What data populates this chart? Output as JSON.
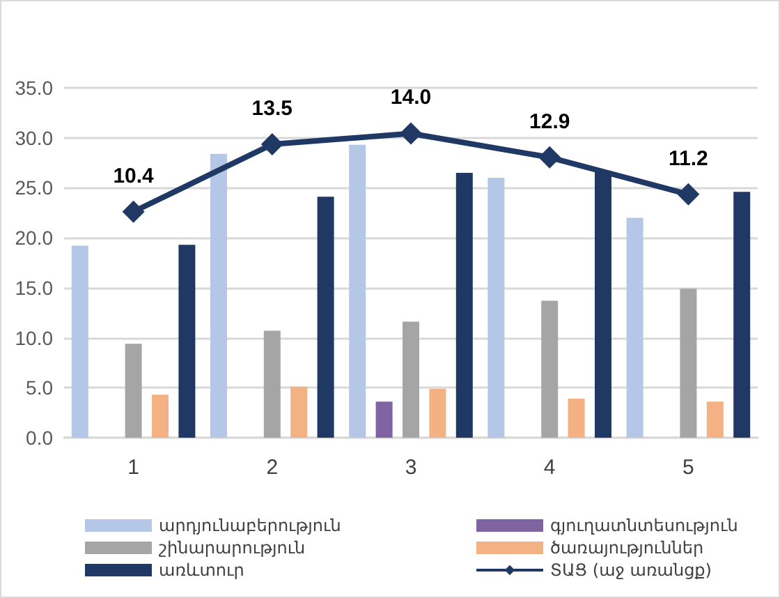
{
  "chart_data": {
    "type": "bar",
    "categories": [
      "1",
      "2",
      "3",
      "4",
      "5"
    ],
    "series": [
      {
        "name": "արդյունաբերություն",
        "color": "#b4c7e7",
        "values": [
          19.2,
          28.4,
          29.3,
          26.0,
          22.0
        ]
      },
      {
        "name": "գյուղատնտեսություն",
        "color": "#8064a2",
        "values": [
          null,
          null,
          3.6,
          null,
          null
        ]
      },
      {
        "name": "շինարարություն",
        "color": "#a5a5a5",
        "values": [
          9.4,
          10.7,
          11.6,
          13.7,
          14.9
        ]
      },
      {
        "name": "ծառայություններ",
        "color": "#f4b183",
        "values": [
          4.3,
          5.1,
          4.9,
          3.9,
          3.6
        ]
      },
      {
        "name": "առևտուր",
        "color": "#203864",
        "values": [
          19.3,
          24.1,
          26.5,
          26.7,
          24.6
        ]
      },
      {
        "name": "ՏԱՑ (աջ առանցք)",
        "type": "line",
        "axis": "y2",
        "color": "#203864",
        "marker": "diamond",
        "values": [
          10.4,
          13.5,
          14.0,
          12.9,
          11.2
        ],
        "value_labels": [
          "10.4",
          "13.5",
          "14.0",
          "12.9",
          "11.2"
        ]
      }
    ],
    "ylim": [
      0,
      35
    ],
    "yticks": [
      {
        "value": 0,
        "label": "0.0"
      },
      {
        "value": 5,
        "label": "5.0"
      },
      {
        "value": 10,
        "label": "10.0"
      },
      {
        "value": 15,
        "label": "15.0"
      },
      {
        "value": 20,
        "label": "20.0"
      },
      {
        "value": 25,
        "label": "25.0"
      },
      {
        "value": 30,
        "label": "30.0"
      },
      {
        "value": 35,
        "label": "35.0"
      }
    ],
    "y2lim": [
      0,
      16.1
    ],
    "grid": "y",
    "legend": "bottom"
  }
}
